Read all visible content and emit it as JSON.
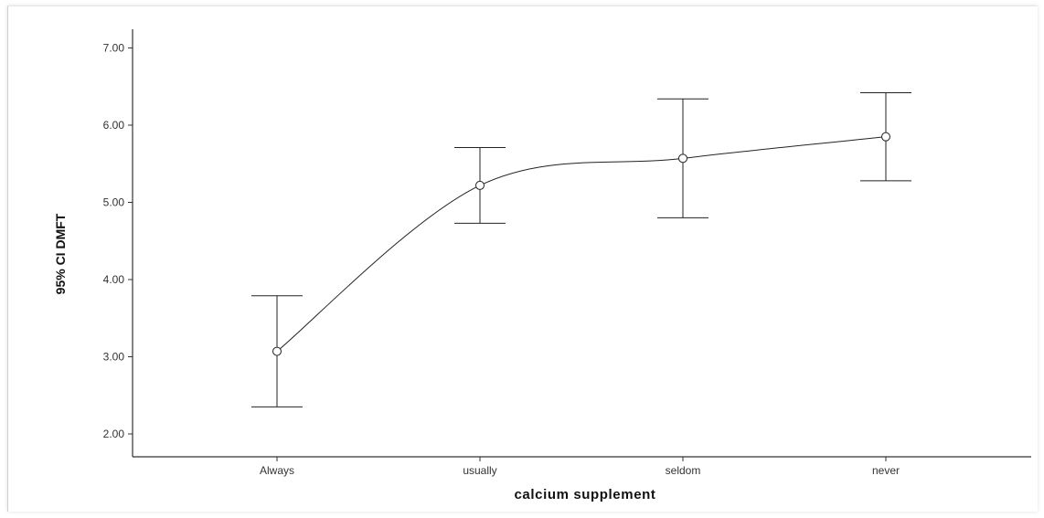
{
  "chart_data": {
    "type": "line",
    "xlabel": "calcium supplement",
    "ylabel": "95% CI DMFT",
    "categories": [
      "Always",
      "usually",
      "seldom",
      "never"
    ],
    "ylim": [
      2.0,
      7.0
    ],
    "yticks": [
      "2.00",
      "3.00",
      "4.00",
      "5.00",
      "6.00",
      "7.00"
    ],
    "grid": false,
    "series": [
      {
        "values": [
          3.07,
          5.22,
          5.57,
          5.85
        ],
        "ci_lower": [
          2.35,
          4.73,
          4.8,
          5.28
        ],
        "ci_upper": [
          3.79,
          5.71,
          6.34,
          6.42
        ]
      }
    ],
    "marker": "open-circle",
    "line_style": "smooth",
    "colors": {
      "line": "#222222",
      "axis": "#333333"
    }
  }
}
